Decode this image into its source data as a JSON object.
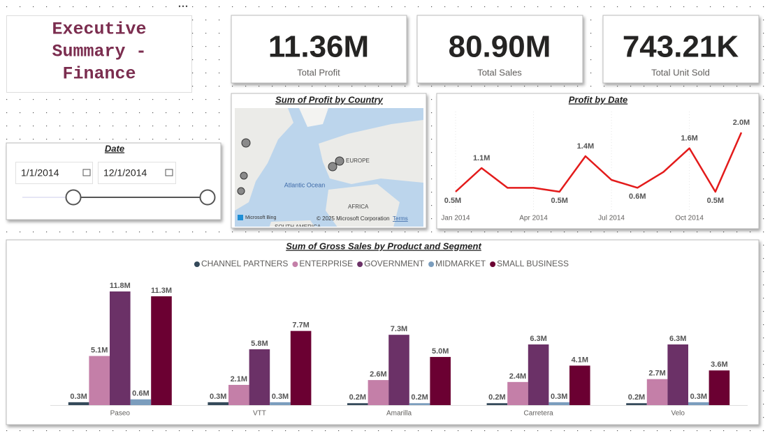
{
  "header": {
    "title_lines": [
      "Executive",
      "Summary -",
      "Finance"
    ]
  },
  "cards": [
    {
      "value": "11.36M",
      "label": "Total Profit"
    },
    {
      "value": "80.90M",
      "label": "Total Sales"
    },
    {
      "value": "743.21K",
      "label": "Total Unit Sold"
    }
  ],
  "date_slicer": {
    "title": "Date",
    "start": "1/1/2014",
    "end": "12/1/2014"
  },
  "map": {
    "title": "Sum of Profit by Country",
    "labels": [
      "EUROPE",
      "Atlantic Ocean",
      "AFRICA",
      "SOUTH AMERICA"
    ],
    "brand": "Microsoft Bing",
    "copyright": "© 2025 Microsoft Corporation",
    "terms": "Terms"
  },
  "chart_data": [
    {
      "type": "line",
      "title": "Profit by Date",
      "categories": [
        "Jan 2014",
        null,
        null,
        "Apr 2014",
        null,
        null,
        "Jul 2014",
        null,
        null,
        "Oct 2014",
        null,
        null
      ],
      "values": [
        0.5,
        1.1,
        0.6,
        0.6,
        0.5,
        1.4,
        0.8,
        0.6,
        1.0,
        1.6,
        0.5,
        2.0
      ],
      "value_labels": [
        "0.5M",
        "1.1M",
        null,
        null,
        "0.5M",
        "1.4M",
        null,
        "0.6M",
        null,
        "1.6M",
        "0.5M",
        "2.0M"
      ],
      "color": "#e31b1b"
    },
    {
      "type": "bar",
      "title": "Sum of Gross Sales by Product and Segment",
      "categories": [
        "Paseo",
        "VTT",
        "Amarilla",
        "Carretera",
        "Velo"
      ],
      "legend": "top",
      "series": [
        {
          "name": "CHANNEL PARTNERS",
          "color": "#34495a",
          "values": [
            0.3,
            0.3,
            0.2,
            0.2,
            0.2
          ],
          "value_labels": [
            "0.3M",
            "0.3M",
            "0.2M",
            "0.2M",
            "0.2M"
          ]
        },
        {
          "name": "ENTERPRISE",
          "color": "#c47fa8",
          "values": [
            5.1,
            2.1,
            2.6,
            2.4,
            2.7
          ],
          "value_labels": [
            "5.1M",
            "2.1M",
            "2.6M",
            "2.4M",
            "2.7M"
          ]
        },
        {
          "name": "GOVERNMENT",
          "color": "#6b3167",
          "values": [
            11.8,
            5.8,
            7.3,
            6.3,
            6.3
          ],
          "value_labels": [
            "11.8M",
            "5.8M",
            "7.3M",
            "6.3M",
            "6.3M"
          ]
        },
        {
          "name": "MIDMARKET",
          "color": "#7b9dbd",
          "values": [
            0.6,
            0.3,
            0.2,
            0.3,
            0.3
          ],
          "value_labels": [
            "0.6M",
            "0.3M",
            "0.2M",
            "0.3M",
            "0.3M"
          ]
        },
        {
          "name": "SMALL BUSINESS",
          "color": "#6b0032",
          "values": [
            11.3,
            7.7,
            5.0,
            4.1,
            3.6
          ],
          "value_labels": [
            "11.3M",
            "7.7M",
            "5.0M",
            "4.1M",
            "3.6M"
          ]
        }
      ]
    }
  ]
}
